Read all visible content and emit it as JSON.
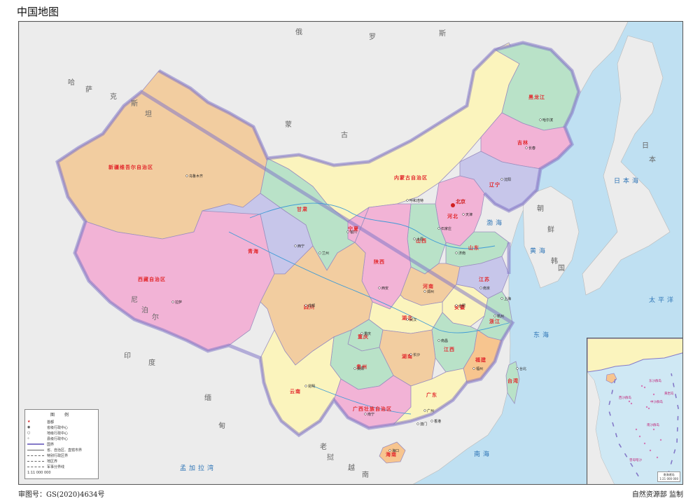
{
  "header": {
    "title": "中国地图"
  },
  "footer": {
    "map_number": "审图号：GS(2020)4634号",
    "supervisor": "自然资源部 监制"
  },
  "colors": {
    "sea": "#bfe0f2",
    "land_foreign": "#ececec",
    "border": "#8479c8",
    "pink": "#f2b3d6",
    "tan": "#f2cda0",
    "green": "#b9e2c8",
    "yellow": "#fbf4bd",
    "lavender": "#c7c6ea",
    "orange": "#f7c58f",
    "capital": "#d01f1f",
    "province_label": "#e2282c"
  },
  "neighbors": [
    "俄",
    "罗",
    "斯",
    "蒙",
    "古",
    "哈",
    "萨",
    "克",
    "斯",
    "坦",
    "印",
    "度",
    "缅",
    "甸",
    "老",
    "挝",
    "越",
    "南",
    "朝",
    "鲜",
    "韩",
    "国",
    "日",
    "本",
    "尼",
    "泊",
    "尔"
  ],
  "provinces": [
    "新疆维吾尔自治区",
    "西藏自治区",
    "青海",
    "甘肃",
    "内蒙古自治区",
    "黑龙江",
    "吉林",
    "辽宁",
    "四川",
    "云南",
    "广西壮族自治区",
    "广东",
    "贵州",
    "湖南",
    "湖北",
    "河南",
    "陕西",
    "山西",
    "河北",
    "山东",
    "江苏",
    "浙江",
    "安徽",
    "江西",
    "福建",
    "台湾",
    "宁夏",
    "重庆",
    "海南"
  ],
  "capital_label": "北京",
  "cities": [
    "乌鲁木齐",
    "拉萨",
    "西宁",
    "兰州",
    "银川",
    "呼和浩特",
    "哈尔滨",
    "长春",
    "沈阳",
    "天津",
    "石家庄",
    "太原",
    "济南",
    "郑州",
    "西安",
    "成都",
    "重庆",
    "贵阳",
    "昆明",
    "南宁",
    "广州",
    "长沙",
    "武汉",
    "合肥",
    "南京",
    "上海",
    "杭州",
    "南昌",
    "福州",
    "台北",
    "海口",
    "香港",
    "澳门"
  ],
  "seas": [
    "渤海",
    "黄海",
    "东海",
    "南海",
    "太平洋",
    "日本海",
    "孟加拉湾"
  ],
  "legend": {
    "title": "图 例",
    "items": [
      "首都",
      "省级行政中心",
      "地级行政中心",
      "县级行政中心",
      "国界",
      "省、自治区、直辖市界",
      "特别行政区界",
      "地区界",
      "军事分界线"
    ],
    "scale": "1:11 000 000"
  },
  "inset": {
    "caption_line1": "南海诸岛",
    "caption_line2": "1:21 000 000",
    "labels": [
      "东沙群岛",
      "西沙群岛",
      "中沙群岛",
      "南沙群岛",
      "黄岩岛",
      "曾母暗沙"
    ]
  }
}
